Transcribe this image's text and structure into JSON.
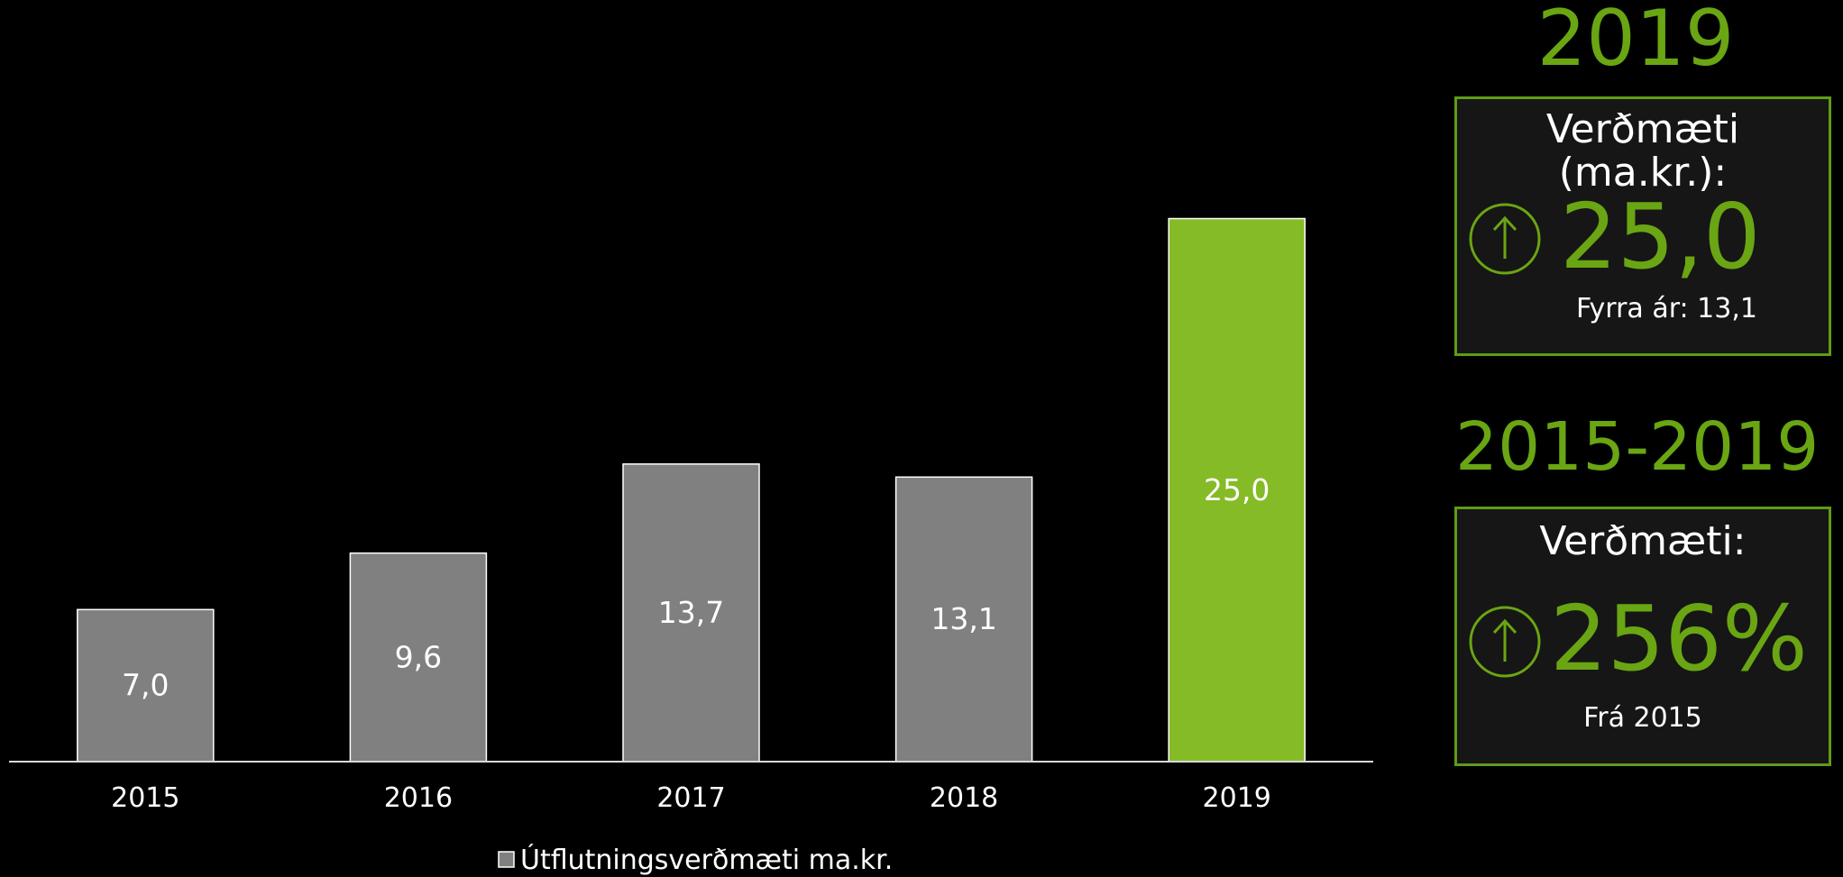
{
  "chart_data": {
    "type": "bar",
    "categories": [
      "2015",
      "2016",
      "2017",
      "2018",
      "2019"
    ],
    "values": [
      7.0,
      9.6,
      13.7,
      13.1,
      25.0
    ],
    "value_labels": [
      "7,0",
      "9,6",
      "13,7",
      "13,1",
      "25,0"
    ],
    "series": [
      {
        "name": "Útflutningsverðmæti ma.kr.",
        "values": [
          7.0,
          9.6,
          13.7,
          13.1,
          25.0
        ]
      }
    ],
    "ylim": [
      0,
      35
    ],
    "highlight_index": 4,
    "colors": {
      "bar": "#808080",
      "highlight": "#85bb27",
      "bar_border": "#ffffff"
    },
    "grid": false,
    "legend": "bottom-center",
    "xlabel": "",
    "ylabel": ""
  },
  "legend_label": "Útflutningsverðmæti ma.kr.",
  "panel_year": {
    "heading": "2019",
    "title": "Verðmæti (ma.kr.):",
    "value": "25,0",
    "note": "Fyrra ár: 13,1",
    "icon": "up-arrow-circle-icon"
  },
  "panel_period": {
    "heading": "2015-2019",
    "title": "Verðmæti:",
    "value": "256%",
    "note": "Frá 2015",
    "icon": "up-arrow-circle-icon"
  },
  "accent_color": "#6aa513"
}
